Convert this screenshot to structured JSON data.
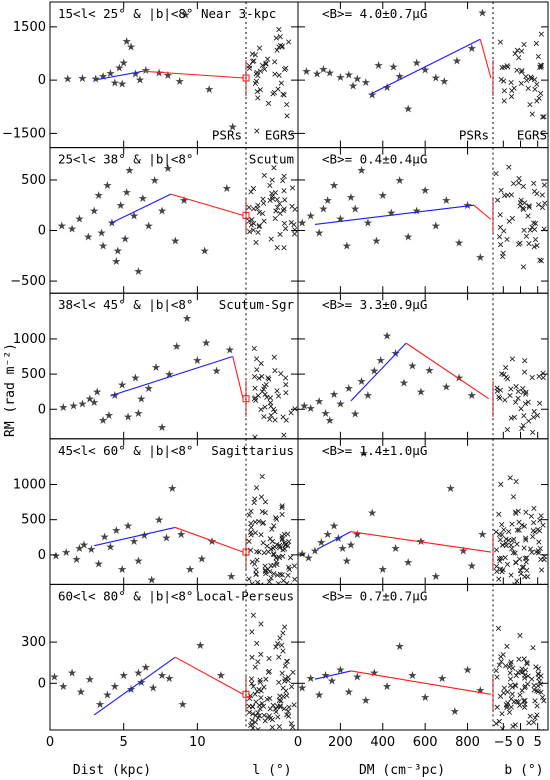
{
  "chart_data": {
    "type": "scatter",
    "ylabel": "RM (rad m⁻²)",
    "x_axes": [
      {
        "id": "dist",
        "label": "Dist (kpc)",
        "xlim": [
          0,
          13.3
        ],
        "ticks": [
          0,
          5,
          10
        ]
      },
      {
        "id": "lat_left",
        "label": "l (°)",
        "xlim": [
          -10,
          10
        ],
        "ticks": []
      },
      {
        "id": "dm",
        "label": "DM (cm⁻³pc)",
        "xlim": [
          0,
          920
        ],
        "ticks": [
          0,
          200,
          400,
          600,
          800
        ]
      },
      {
        "id": "lat_right",
        "label": "b (°)",
        "xlim": [
          -8,
          8
        ],
        "ticks": [
          -5,
          0,
          5
        ]
      }
    ],
    "legend": {
      "psrs": "PSRs",
      "egrs": "EGRS",
      "psr_color": "#1a1aff",
      "egrs_color": "#ff1a1a"
    },
    "rows": [
      {
        "region": "15<l< 25° & |b|<8°  Near 3-kpc",
        "field": "<B>= 4.0±0.7μG",
        "ylim": [
          -1900,
          2200
        ],
        "yticks": [
          -1500,
          0,
          1500
        ],
        "yticklabels": [
          "−1500",
          "0",
          "1500"
        ],
        "dist_fit": [
          [
            3.0,
            0
          ],
          [
            6.3,
            250
          ]
        ],
        "dist_tail": [
          [
            6.3,
            250
          ],
          [
            13.2,
            60
          ]
        ],
        "dm_fit": [
          [
            340,
            -400
          ],
          [
            860,
            1150
          ]
        ],
        "dm_tail": [
          [
            860,
            1150
          ],
          [
            910,
            60
          ]
        ],
        "egrs_level": 60,
        "dist_pts": [
          [
            1.2,
            40
          ],
          [
            2.2,
            60
          ],
          [
            3.1,
            50
          ],
          [
            3.6,
            120
          ],
          [
            4.1,
            200
          ],
          [
            4.4,
            -60
          ],
          [
            4.7,
            350
          ],
          [
            5.0,
            500
          ],
          [
            5.2,
            1100
          ],
          [
            5.5,
            950
          ],
          [
            5.8,
            180
          ],
          [
            6.1,
            20
          ],
          [
            6.5,
            280
          ],
          [
            7.4,
            220
          ],
          [
            8.0,
            150
          ],
          [
            8.8,
            -30
          ],
          [
            9.2,
            1850
          ],
          [
            10.8,
            -250
          ],
          [
            12.4,
            -1300
          ],
          [
            4.9,
            -90
          ]
        ],
        "dm_pts": [
          [
            40,
            250
          ],
          [
            90,
            180
          ],
          [
            150,
            220
          ],
          [
            200,
            90
          ],
          [
            240,
            160
          ],
          [
            280,
            40
          ],
          [
            320,
            -50
          ],
          [
            350,
            -400
          ],
          [
            380,
            420
          ],
          [
            420,
            -200
          ],
          [
            450,
            380
          ],
          [
            480,
            120
          ],
          [
            520,
            -800
          ],
          [
            560,
            500
          ],
          [
            600,
            300
          ],
          [
            650,
            80
          ],
          [
            690,
            -30
          ],
          [
            750,
            550
          ],
          [
            820,
            900
          ],
          [
            870,
            1900
          ],
          [
            120,
            320
          ],
          [
            260,
            -150
          ]
        ],
        "density": "low"
      },
      {
        "region": "25<l< 38° & |b|<8°",
        "label": "Scutum",
        "field": "<B>= 0.4±0.4μG",
        "ylim": [
          -620,
          820
        ],
        "yticks": [
          -500,
          0,
          500
        ],
        "yticklabels": [
          "−500",
          "0",
          "500"
        ],
        "dist_fit": [
          [
            4.1,
            70
          ],
          [
            8.2,
            360
          ]
        ],
        "dist_tail": [
          [
            8.2,
            360
          ],
          [
            13.1,
            150
          ]
        ],
        "dm_fit": [
          [
            80,
            60
          ],
          [
            830,
            250
          ]
        ],
        "dm_tail": [
          [
            830,
            250
          ],
          [
            910,
            110
          ]
        ],
        "egrs_level": 150,
        "dist_pts": [
          [
            0.8,
            50
          ],
          [
            1.5,
            20
          ],
          [
            2.0,
            120
          ],
          [
            2.6,
            -60
          ],
          [
            3.0,
            200
          ],
          [
            3.3,
            350
          ],
          [
            3.6,
            -150
          ],
          [
            3.9,
            450
          ],
          [
            4.2,
            80
          ],
          [
            4.5,
            -300
          ],
          [
            4.8,
            250
          ],
          [
            5.1,
            -80
          ],
          [
            5.4,
            600
          ],
          [
            5.7,
            150
          ],
          [
            6.0,
            -400
          ],
          [
            6.3,
            320
          ],
          [
            6.7,
            50
          ],
          [
            7.1,
            500
          ],
          [
            7.6,
            200
          ],
          [
            8.0,
            620
          ],
          [
            8.5,
            -100
          ],
          [
            9.1,
            300
          ],
          [
            10.5,
            -200
          ],
          [
            12.0,
            420
          ],
          [
            3.5,
            -20
          ],
          [
            4.6,
            -200
          ],
          [
            5.2,
            380
          ]
        ],
        "dm_pts": [
          [
            20,
            80
          ],
          [
            60,
            150
          ],
          [
            100,
            -20
          ],
          [
            140,
            300
          ],
          [
            170,
            450
          ],
          [
            200,
            120
          ],
          [
            230,
            -150
          ],
          [
            270,
            220
          ],
          [
            300,
            600
          ],
          [
            330,
            80
          ],
          [
            370,
            -100
          ],
          [
            400,
            350
          ],
          [
            440,
            180
          ],
          [
            480,
            500
          ],
          [
            520,
            -60
          ],
          [
            560,
            200
          ],
          [
            600,
            400
          ],
          [
            650,
            50
          ],
          [
            700,
            300
          ],
          [
            760,
            -120
          ],
          [
            800,
            250
          ],
          [
            860,
            -260
          ],
          [
            120,
            220
          ],
          [
            250,
            330
          ]
        ],
        "density": "medium"
      },
      {
        "region": "38<l< 45° & |b|<8°",
        "label": "Scutum-Sgr",
        "field": "<B>= 3.3±0.9μG",
        "ylim": [
          -420,
          1650
        ],
        "yticks": [
          0,
          500,
          1000
        ],
        "yticklabels": [
          "0",
          "500",
          "1000"
        ],
        "dist_fit": [
          [
            4.1,
            190
          ],
          [
            12.4,
            750
          ]
        ],
        "dist_tail": [
          [
            12.4,
            750
          ],
          [
            13.1,
            150
          ]
        ],
        "dm_fit": [
          [
            250,
            120
          ],
          [
            510,
            940
          ]
        ],
        "dm_tail": [
          [
            510,
            940
          ],
          [
            900,
            150
          ]
        ],
        "egrs_level": 150,
        "dist_pts": [
          [
            0.9,
            30
          ],
          [
            1.6,
            50
          ],
          [
            2.2,
            80
          ],
          [
            2.7,
            150
          ],
          [
            3.2,
            250
          ],
          [
            3.6,
            -150
          ],
          [
            4.0,
            -80
          ],
          [
            4.4,
            200
          ],
          [
            4.9,
            350
          ],
          [
            5.3,
            -100
          ],
          [
            5.8,
            450
          ],
          [
            6.2,
            150
          ],
          [
            6.7,
            300
          ],
          [
            7.2,
            600
          ],
          [
            7.6,
            -250
          ],
          [
            8.1,
            500
          ],
          [
            8.6,
            900
          ],
          [
            9.3,
            1300
          ],
          [
            10.0,
            700
          ],
          [
            10.6,
            950
          ],
          [
            11.3,
            550
          ],
          [
            12.2,
            850
          ],
          [
            6.0,
            -50
          ],
          [
            3.0,
            100
          ]
        ],
        "dm_pts": [
          [
            30,
            50
          ],
          [
            60,
            20
          ],
          [
            100,
            120
          ],
          [
            130,
            -50
          ],
          [
            170,
            220
          ],
          [
            200,
            80
          ],
          [
            240,
            300
          ],
          [
            270,
            -60
          ],
          [
            300,
            400
          ],
          [
            330,
            200
          ],
          [
            360,
            550
          ],
          [
            390,
            700
          ],
          [
            420,
            1050
          ],
          [
            460,
            800
          ],
          [
            500,
            380
          ],
          [
            540,
            620
          ],
          [
            580,
            250
          ],
          [
            620,
            560
          ],
          [
            700,
            320
          ],
          [
            760,
            450
          ],
          [
            820,
            200
          ],
          [
            150,
            -150
          ]
        ],
        "density": "low"
      },
      {
        "region": "45<l< 60° & |b|<8°",
        "label": "Sagittarius",
        "field": "<B>= 1.4±1.0μG",
        "ylim": [
          -420,
          1650
        ],
        "yticks": [
          0,
          500,
          1000
        ],
        "yticklabels": [
          "0",
          "500",
          "1000"
        ],
        "dist_fit": [
          [
            3.0,
            130
          ],
          [
            8.5,
            390
          ]
        ],
        "dist_tail": [
          [
            8.5,
            390
          ],
          [
            13.1,
            40
          ]
        ],
        "dm_fit": [
          [
            90,
            80
          ],
          [
            250,
            330
          ]
        ],
        "dm_tail": [
          [
            250,
            330
          ],
          [
            910,
            40
          ]
        ],
        "egrs_level": 40,
        "dist_pts": [
          [
            0.4,
            -10
          ],
          [
            1.1,
            40
          ],
          [
            1.8,
            -60
          ],
          [
            2.3,
            150
          ],
          [
            2.8,
            80
          ],
          [
            3.3,
            -120
          ],
          [
            3.7,
            260
          ],
          [
            4.1,
            120
          ],
          [
            4.5,
            350
          ],
          [
            4.9,
            -200
          ],
          [
            5.3,
            420
          ],
          [
            5.7,
            200
          ],
          [
            6.0,
            -80
          ],
          [
            6.4,
            280
          ],
          [
            6.9,
            -350
          ],
          [
            7.4,
            500
          ],
          [
            7.9,
            250
          ],
          [
            8.3,
            950
          ],
          [
            8.9,
            300
          ],
          [
            9.5,
            -200
          ],
          [
            10.3,
            -50
          ],
          [
            11.0,
            200
          ],
          [
            12.3,
            -300
          ],
          [
            2.0,
            100
          ]
        ],
        "dm_pts": [
          [
            20,
            20
          ],
          [
            50,
            -40
          ],
          [
            80,
            60
          ],
          [
            110,
            180
          ],
          [
            140,
            300
          ],
          [
            170,
            420
          ],
          [
            190,
            240
          ],
          [
            210,
            100
          ],
          [
            230,
            -80
          ],
          [
            250,
            150
          ],
          [
            280,
            300
          ],
          [
            310,
            1450
          ],
          [
            350,
            600
          ],
          [
            400,
            -200
          ],
          [
            460,
            100
          ],
          [
            520,
            -100
          ],
          [
            580,
            200
          ],
          [
            650,
            -300
          ],
          [
            720,
            950
          ],
          [
            780,
            60
          ],
          [
            820,
            -150
          ],
          [
            870,
            300
          ]
        ],
        "density": "high"
      },
      {
        "region": "60<l< 80° & |b|<8°",
        "label": "Local-Perseus",
        "field": "<B>= 0.7±0.7μG",
        "ylim": [
          -340,
          720
        ],
        "yticks": [
          0,
          300
        ],
        "yticklabels": [
          "0",
          "300"
        ],
        "dist_fit": [
          [
            3.0,
            -230
          ],
          [
            8.5,
            190
          ]
        ],
        "dist_tail": [
          [
            8.5,
            190
          ],
          [
            13.1,
            -80
          ]
        ],
        "dm_fit": [
          [
            80,
            30
          ],
          [
            250,
            90
          ]
        ],
        "dm_tail": [
          [
            250,
            90
          ],
          [
            910,
            -80
          ]
        ],
        "egrs_level": -80,
        "dist_pts": [
          [
            0.3,
            50
          ],
          [
            0.9,
            -20
          ],
          [
            1.5,
            80
          ],
          [
            2.1,
            -60
          ],
          [
            2.7,
            30
          ],
          [
            3.4,
            -150
          ],
          [
            3.9,
            -80
          ],
          [
            4.4,
            -20
          ],
          [
            5.0,
            60
          ],
          [
            5.5,
            -40
          ],
          [
            6.0,
            80
          ],
          [
            6.5,
            120
          ],
          [
            7.0,
            -30
          ],
          [
            7.6,
            60
          ],
          [
            8.1,
            40
          ],
          [
            9.0,
            -150
          ],
          [
            10.2,
            280
          ],
          [
            11.6,
            60
          ],
          [
            6.2,
            10
          ]
        ],
        "dm_pts": [
          [
            20,
            -30
          ],
          [
            60,
            40
          ],
          [
            100,
            -80
          ],
          [
            130,
            60
          ],
          [
            160,
            20
          ],
          [
            200,
            100
          ],
          [
            240,
            -60
          ],
          [
            280,
            50
          ],
          [
            320,
            -120
          ],
          [
            360,
            80
          ],
          [
            420,
            -20
          ],
          [
            480,
            270
          ],
          [
            540,
            60
          ],
          [
            600,
            -100
          ],
          [
            680,
            40
          ],
          [
            740,
            -200
          ],
          [
            800,
            100
          ],
          [
            860,
            -50
          ]
        ],
        "density": "high"
      }
    ]
  }
}
